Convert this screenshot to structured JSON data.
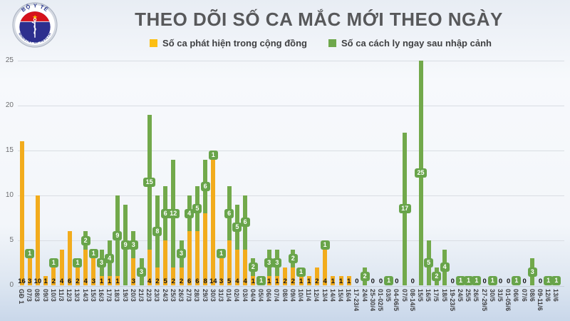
{
  "header": {
    "title": "THEO DÕI SỐ CA MẮC MỚI THEO NGÀY",
    "logo": {
      "top_text": "BỘ Y TẾ",
      "bottom_text": "MINISTRY OF HEALTH"
    }
  },
  "legend": [
    {
      "label": "Số ca phát hiện trong cộng đồng",
      "color": "#fcbf13"
    },
    {
      "label": "Số ca cách ly ngay sau nhập cảnh",
      "color": "#6fa84c"
    }
  ],
  "colors": {
    "community_yellow": "#f2ac1d",
    "quarantine_green": "#72a94b",
    "badge_green": "#68a44a",
    "title_text": "#57585a",
    "gridline": "#d9dde3"
  },
  "chart_data": {
    "type": "bar",
    "stacked": true,
    "title": "THEO DÕI SỐ CA MẮC MỚI THEO NGÀY",
    "xlabel": "",
    "ylabel": "",
    "ylim": [
      0,
      25
    ],
    "yticks": [
      0,
      5,
      10,
      15,
      20,
      25
    ],
    "grid": true,
    "legend_position": "top",
    "categories": [
      "GĐ 1",
      "07/3",
      "08/3",
      "09/3",
      "10/3",
      "11/3",
      "12/3",
      "13/3",
      "14/3",
      "15/3",
      "16/3",
      "17/3",
      "18/3",
      "19/3",
      "20/3",
      "21/3",
      "22/3",
      "23/3",
      "24/3",
      "25/3",
      "26/3",
      "27/3",
      "28/3",
      "29/3",
      "30/3",
      "31/3",
      "01/4",
      "02/4",
      "03/4",
      "04/4",
      "05/4",
      "06/4",
      "07/4",
      "08/4",
      "09/4",
      "10/4",
      "11/4",
      "12/4",
      "13/4",
      "14/4",
      "15/4",
      "16/4",
      "17-23/4",
      "24/4",
      "25-30/4",
      "01-02/5",
      "03/5",
      "04-06/5",
      "07/5",
      "08-14/5",
      "15/5",
      "16/5",
      "17/5",
      "18/5",
      "19-23/5",
      "24/5",
      "25/5",
      "26/5",
      "27-29/5",
      "30/5",
      "31/5",
      "01-05/6",
      "06/6",
      "07/6",
      "08/6",
      "09-11/6",
      "12/6",
      "13/6"
    ],
    "series": [
      {
        "name": "Số ca phát hiện trong cộng đồng",
        "color": "#f2ac1d",
        "values": [
          16,
          3,
          10,
          1,
          2,
          4,
          6,
          2,
          4,
          3,
          1,
          1,
          1,
          0,
          3,
          0,
          4,
          2,
          5,
          2,
          2,
          6,
          6,
          8,
          14,
          3,
          5,
          4,
          4,
          1,
          0,
          1,
          1,
          2,
          2,
          1,
          1,
          2,
          4,
          1,
          1,
          1,
          0,
          0,
          0,
          0,
          0,
          0,
          0,
          0,
          0,
          0,
          0,
          0,
          0,
          0,
          0,
          0,
          0,
          0,
          0,
          0,
          0,
          0,
          0,
          0,
          0,
          0
        ]
      },
      {
        "name": "Số ca cách ly ngay sau nhập cảnh",
        "color": "#72a94b",
        "values": [
          0,
          1,
          0,
          0,
          1,
          0,
          0,
          1,
          2,
          1,
          3,
          4,
          9,
          9,
          3,
          3,
          15,
          8,
          6,
          12,
          3,
          4,
          5,
          6,
          1,
          1,
          6,
          5,
          6,
          2,
          1,
          3,
          3,
          0,
          2,
          1,
          0,
          0,
          1,
          0,
          0,
          0,
          0,
          2,
          0,
          0,
          1,
          0,
          17,
          0,
          25,
          5,
          2,
          4,
          0,
          1,
          1,
          1,
          0,
          1,
          0,
          0,
          1,
          0,
          3,
          0,
          1,
          1
        ]
      }
    ],
    "label_rules": "yellow (community) values printed in black at bar base; zero-total days printed as 0; green (quarantine) values shown as green badges centered on green segment"
  }
}
